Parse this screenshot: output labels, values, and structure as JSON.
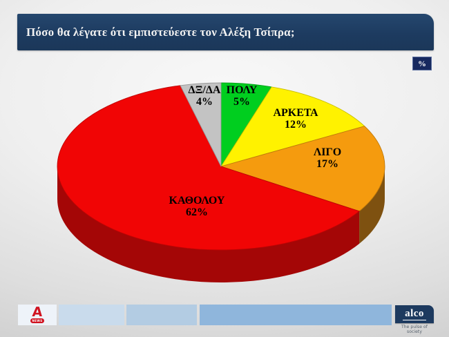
{
  "title_bar": {
    "text": "Πόσο θα λέγατε ότι εμπιστεύεστε τον Αλέξη Τσίπρα;"
  },
  "unit_badge": "%",
  "chart_data": {
    "type": "pie",
    "style": "3d",
    "title": "Πόσο θα λέγατε ότι εμπιστεύεστε τον Αλέξη Τσίπρα;",
    "unit": "%",
    "direction": "clockwise",
    "start_angle_deg": 0,
    "legend_position": "labels-on-slices",
    "slices": [
      {
        "label": "ΠΟΛΥ",
        "value": 5,
        "display": "5%",
        "color": "#00CE1F"
      },
      {
        "label": "ΑΡΚΕΤΑ",
        "value": 12,
        "display": "12%",
        "color": "#FFF200"
      },
      {
        "label": "ΛΙΓΟ",
        "value": 17,
        "display": "17%",
        "color": "#F59B0E",
        "side_color": "#7E5110"
      },
      {
        "label": "ΚΑΘΟΛΟΥ",
        "value": 62,
        "display": "62%",
        "color": "#F10505",
        "side_color": "#A40606"
      },
      {
        "label": "ΔΞ/ΔΑ",
        "value": 4,
        "display": "4%",
        "color": "#C3C3C3"
      }
    ]
  },
  "footer": {
    "alpha_logo": {
      "letter": "A",
      "news_label": "NEWS"
    },
    "bar_colors": [
      "#EEF3F9",
      "#C9DBEC",
      "#B3CCE3",
      "#8FB6DC"
    ],
    "alco": {
      "name": "alco",
      "tagline": "The pulse of society"
    }
  },
  "colors": {
    "title_bar_bg": "#1E3C62",
    "badge_bg": "#17295F",
    "badge_border": "#5A6E9E",
    "slice_label_text": "#000000",
    "alco_bg": "#1D3A5F",
    "alpha_red": "#D01320",
    "background_center": "#F8F8F8",
    "background_edge": "#C6C6C6"
  }
}
